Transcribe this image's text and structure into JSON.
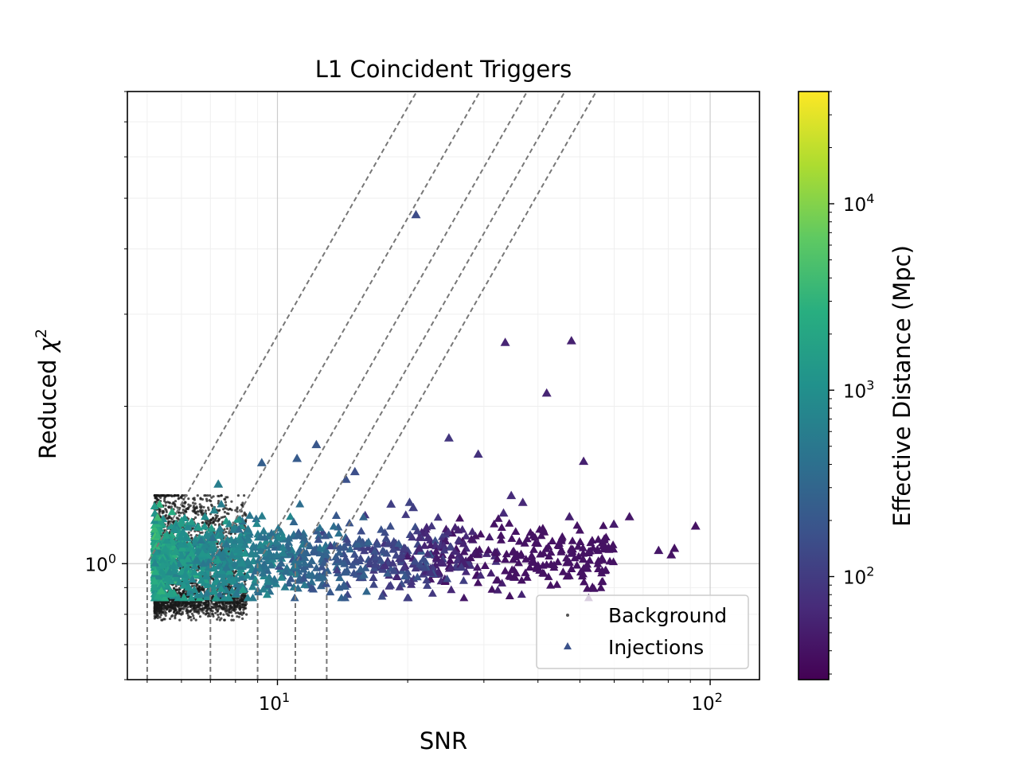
{
  "chart_data": {
    "type": "scatter",
    "title": "L1 Coincident Triggers",
    "xlabel": "SNR",
    "ylabel_main": "Reduced ",
    "ylabel_symbol": "χ",
    "ylabel_sup": "2",
    "x_scale": "log",
    "y_scale": "log",
    "xlim": [
      4.5,
      130
    ],
    "ylim": [
      0.6,
      8
    ],
    "x_tick_labels": [
      {
        "value": 10,
        "base": "10",
        "exp": "1"
      },
      {
        "value": 100,
        "base": "10",
        "exp": "2"
      }
    ],
    "y_tick_labels": [
      {
        "value": 1,
        "base": "10",
        "exp": "0"
      }
    ],
    "grid": true,
    "legend_position": "lower right",
    "legend": [
      {
        "label": "Background",
        "marker": "dot",
        "color": "#555555"
      },
      {
        "label": "Injections",
        "marker": "triangle-up",
        "color": "#3b528b"
      }
    ],
    "colorbar": {
      "label": "Effective Distance (Mpc)",
      "scale": "log",
      "range": [
        28,
        40000
      ],
      "colormap": "viridis",
      "tick_labels": [
        {
          "value": 100,
          "base": "10",
          "exp": "2"
        },
        {
          "value": 1000,
          "base": "10",
          "exp": "3"
        },
        {
          "value": 10000,
          "base": "10",
          "exp": "4"
        }
      ]
    },
    "threshold_curves_snr_at_chisq_1": [
      5.0,
      7.0,
      9.0,
      11.0,
      13.0
    ],
    "injections_labeled_points": [
      {
        "snr": 20.9,
        "chisq": 4.65,
        "dist": 150
      },
      {
        "snr": 33.6,
        "chisq": 2.65,
        "dist": 60
      },
      {
        "snr": 47.8,
        "chisq": 2.67,
        "dist": 55
      },
      {
        "snr": 41.9,
        "chisq": 2.12,
        "dist": 60
      },
      {
        "snr": 24.9,
        "chisq": 1.74,
        "dist": 90
      },
      {
        "snr": 29.1,
        "chisq": 1.62,
        "dist": 80
      },
      {
        "snr": 51.0,
        "chisq": 1.57,
        "dist": 55
      },
      {
        "snr": 12.3,
        "chisq": 1.69,
        "dist": 200
      },
      {
        "snr": 9.2,
        "chisq": 1.56,
        "dist": 250
      },
      {
        "snr": 11.1,
        "chisq": 1.59,
        "dist": 220
      },
      {
        "snr": 15.1,
        "chisq": 1.5,
        "dist": 160
      },
      {
        "snr": 14.4,
        "chisq": 1.45,
        "dist": 170
      },
      {
        "snr": 7.3,
        "chisq": 1.42,
        "dist": 600
      },
      {
        "snr": 34.7,
        "chisq": 1.35,
        "dist": 70
      },
      {
        "snr": 36.9,
        "chisq": 1.31,
        "dist": 65
      },
      {
        "snr": 20.2,
        "chisq": 1.31,
        "dist": 120
      },
      {
        "snr": 20.6,
        "chisq": 1.28,
        "dist": 110
      },
      {
        "snr": 18.3,
        "chisq": 1.3,
        "dist": 110
      },
      {
        "snr": 92.5,
        "chisq": 1.18,
        "dist": 40
      },
      {
        "snr": 81.3,
        "chisq": 1.04,
        "dist": 40
      },
      {
        "snr": 82.7,
        "chisq": 1.07,
        "dist": 40
      },
      {
        "snr": 76.0,
        "chisq": 1.06,
        "dist": 45
      },
      {
        "snr": 65.1,
        "chisq": 1.23,
        "dist": 45
      },
      {
        "snr": 59.9,
        "chisq": 1.19,
        "dist": 50
      },
      {
        "snr": 47.3,
        "chisq": 1.23,
        "dist": 55
      },
      {
        "snr": 33.3,
        "chisq": 1.25,
        "dist": 70
      },
      {
        "snr": 18.6,
        "chisq": 0.97,
        "dist": 140
      },
      {
        "snr": 26.6,
        "chisq": 0.985,
        "dist": 100
      }
    ],
    "injections_bulk_summary": {
      "snr_range": [
        5.2,
        60
      ],
      "chisq_range": [
        0.86,
        1.3
      ],
      "dist_range": [
        40,
        10000
      ]
    },
    "background_bulk_summary": {
      "snr_range": [
        5.2,
        8.5
      ],
      "chisq_range": [
        0.78,
        1.3
      ]
    }
  }
}
